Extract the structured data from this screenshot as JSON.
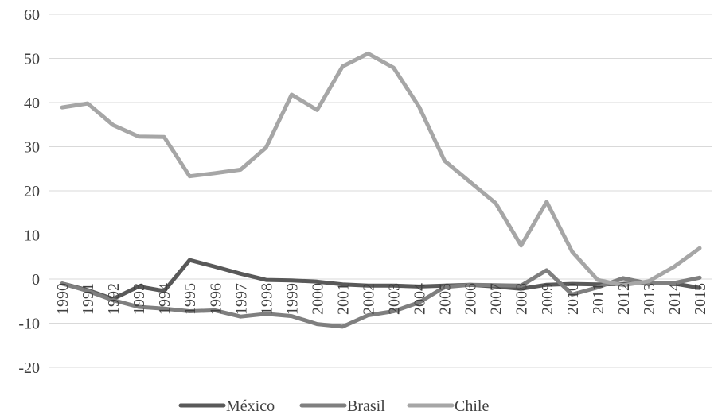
{
  "chart_data": {
    "type": "line",
    "ylim": [
      -20,
      60
    ],
    "yticks": [
      -20,
      -10,
      0,
      10,
      20,
      30,
      40,
      50,
      60
    ],
    "ytick_labels": [
      "-20",
      "-10",
      "0",
      "10",
      "20",
      "30",
      "40",
      "50",
      "60"
    ],
    "grid": true,
    "legend_position": "bottom",
    "x": [
      "1990",
      "1991",
      "1992",
      "1993",
      "1994",
      "1995",
      "1996",
      "1997",
      "1998",
      "1999",
      "2000",
      "2001",
      "2002",
      "2003",
      "2004",
      "2005",
      "2006",
      "2007",
      "2008",
      "2009",
      "2010",
      "2011",
      "2012",
      "2013",
      "2014",
      "2015"
    ],
    "series": [
      {
        "name": "México",
        "color": "#595959",
        "values": [
          -1.0,
          -2.5,
          -4.5,
          -1.7,
          -2.7,
          4.3,
          2.8,
          1.2,
          -0.2,
          -0.3,
          -0.6,
          -1.2,
          -1.5,
          -1.5,
          -1.7,
          -1.5,
          -1.3,
          -1.7,
          -2.2,
          -1.3,
          -1.1,
          -1.2,
          -1.1,
          -0.8,
          -1.0,
          -2.0
        ]
      },
      {
        "name": "Brasil",
        "color": "#7f7f7f",
        "values": [
          -1.0,
          -2.7,
          -4.8,
          -6.3,
          -6.7,
          -7.3,
          -7.1,
          -8.5,
          -7.9,
          -8.4,
          -10.2,
          -10.8,
          -8.2,
          -7.3,
          -5.3,
          -1.8,
          -1.3,
          -1.4,
          -1.5,
          2.0,
          -3.5,
          -1.9,
          0.2,
          -1.0,
          -0.9,
          0.3
        ]
      },
      {
        "name": "Chile",
        "color": "#a6a6a6",
        "values": [
          38.9,
          39.8,
          34.9,
          32.3,
          32.2,
          23.3,
          24.0,
          24.8,
          29.8,
          41.8,
          38.3,
          48.2,
          51.1,
          47.9,
          39.0,
          26.8,
          22.0,
          17.2,
          7.6,
          17.5,
          6.2,
          -0.2,
          -1.4,
          -0.5,
          2.8,
          7.0
        ]
      }
    ]
  }
}
